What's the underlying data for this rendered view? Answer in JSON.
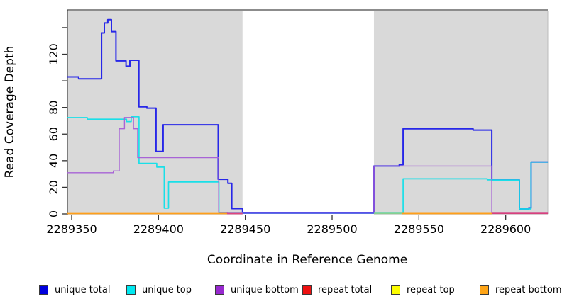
{
  "figure": {
    "background": "#ffffff",
    "plot_bg_shaded": "#d9d9d9",
    "xlabel": "Coordinate in Reference Genome",
    "ylabel": "Read Coverage Depth"
  },
  "chart_data": {
    "type": "line",
    "step": true,
    "title": "",
    "xlabel": "Coordinate in Reference Genome",
    "ylabel": "Read Coverage Depth",
    "xlim": [
      2289347.5,
      2289624.3
    ],
    "ylim": [
      0,
      152
    ],
    "grid": false,
    "legend_position": "bottom",
    "x_ticks": [
      {
        "v": 2289350,
        "label": "2289350"
      },
      {
        "v": 2289400,
        "label": "2289400"
      },
      {
        "v": 2289450,
        "label": "2289450"
      },
      {
        "v": 2289500,
        "label": "2289500"
      },
      {
        "v": 2289550,
        "label": "2289550"
      },
      {
        "v": 2289600,
        "label": "2289600"
      }
    ],
    "y_ticks": [
      {
        "v": 0,
        "label": "0"
      },
      {
        "v": 20,
        "label": "20"
      },
      {
        "v": 40,
        "label": "40"
      },
      {
        "v": 60,
        "label": "60"
      },
      {
        "v": 80,
        "label": "80"
      },
      {
        "v": 100,
        "label": ""
      },
      {
        "v": 120,
        "label": "120"
      },
      {
        "v": 140,
        "label": ""
      }
    ],
    "shaded_regions": [
      {
        "x1": 2289347.5,
        "x2": 2289448.4
      },
      {
        "x1": 2289524.1,
        "x2": 2289624.3
      }
    ],
    "series": [
      {
        "name": "unique total",
        "color": "#2727e8",
        "swatch": "#0000dd",
        "width": 2,
        "draw": true,
        "segments": [
          [
            [
              2289347.5,
              103
            ],
            [
              2289354.0,
              101.5
            ],
            [
              2289367.2,
              136
            ],
            [
              2289368.8,
              143.5
            ],
            [
              2289370.8,
              146
            ],
            [
              2289372.9,
              137
            ],
            [
              2289375.5,
              115
            ],
            [
              2289381.3,
              111
            ],
            [
              2289383.5,
              115.5
            ],
            [
              2289388.7,
              80.5
            ],
            [
              2289393.3,
              79.5
            ],
            [
              2289398.6,
              47
            ],
            [
              2289402.7,
              67
            ],
            [
              2289434.4,
              26
            ],
            [
              2289440.0,
              23
            ],
            [
              2289442.2,
              4
            ],
            [
              2289448.4,
              0.7
            ],
            [
              2289524.1,
              36
            ],
            [
              2289538.7,
              37
            ],
            [
              2289540.9,
              64
            ],
            [
              2289581.2,
              63
            ],
            [
              2289592.0,
              25.5
            ],
            [
              2289607.9,
              3.7
            ],
            [
              2289613.2,
              4.5
            ],
            [
              2289614.6,
              39
            ],
            [
              2289624.3,
              39
            ]
          ]
        ]
      },
      {
        "name": "unique top",
        "color": "#19dfe8",
        "swatch": "#00e8f0",
        "width": 1.7,
        "draw": true,
        "segments": [
          [
            [
              2289347.5,
              72.4
            ],
            [
              2289359.0,
              71.2
            ],
            [
              2289381.6,
              69.4
            ],
            [
              2289384.3,
              73
            ],
            [
              2289388.8,
              38
            ],
            [
              2289399.0,
              35.2
            ],
            [
              2289403.3,
              4.3
            ],
            [
              2289405.8,
              24
            ],
            [
              2289434.8,
              0.5
            ],
            [
              2289540.9,
              26.4
            ],
            [
              2289589.4,
              25.6
            ],
            [
              2289592.0,
              25.5
            ],
            [
              2289607.9,
              3.7
            ],
            [
              2289614.6,
              39
            ],
            [
              2289624.3,
              39
            ]
          ]
        ]
      },
      {
        "name": "unique bottom",
        "color": "#a863d6",
        "swatch": "#9728cf",
        "width": 1.4,
        "draw": true,
        "segments": [
          [
            [
              2289347.5,
              31
            ],
            [
              2289374.0,
              32.3
            ],
            [
              2289377.4,
              64
            ],
            [
              2289380.4,
              72.5
            ],
            [
              2289385.6,
              64
            ],
            [
              2289388.0,
              42.3
            ],
            [
              2289434.7,
              1.2
            ],
            [
              2289439.5,
              0.5
            ],
            [
              2289524.1,
              36
            ],
            [
              2289592.0,
              0.5
            ],
            [
              2289624.3,
              0.5
            ]
          ]
        ]
      },
      {
        "name": "repeat total",
        "color": "#d8407c",
        "swatch": "#ee1111",
        "width": 1.6,
        "draw": false,
        "segments": [
          [
            [
              2289439.5,
              0.25
            ],
            [
              2289448.4,
              0.25
            ]
          ],
          [
            [
              2289592.0,
              0.4
            ],
            [
              2289624.3,
              0.4
            ]
          ]
        ]
      },
      {
        "name": "repeat top",
        "color": "#fdfd00",
        "swatch": "#fdfd00",
        "width": 1.6,
        "draw": false,
        "segments": [
          [
            [
              2289524.1,
              0.4
            ],
            [
              2289540.3,
              0.4
            ]
          ]
        ]
      },
      {
        "name": "repeat bottom",
        "color": "#ff9f1a",
        "swatch": "#ffa517",
        "width": 1.6,
        "draw": false,
        "segments": [
          [
            [
              2289347.5,
              0.25
            ],
            [
              2289439.5,
              0.25
            ]
          ],
          [
            [
              2289540.3,
              0.3
            ],
            [
              2289592.0,
              0.3
            ]
          ]
        ]
      }
    ],
    "baseline_segments": [
      {
        "name": "repeat-bottom-left",
        "x1": 2289347.5,
        "x2": 2289439.5,
        "value": 0.25,
        "color": "#ff9f1a"
      },
      {
        "name": "repeat-total-left",
        "x1": 2289439.5,
        "x2": 2289448.4,
        "value": 0.25,
        "color": "#e0447f"
      },
      {
        "name": "unique-total-gap",
        "x1": 2289448.4,
        "x2": 2289524.1,
        "value": 0.7,
        "color": "#5a50e8"
      },
      {
        "name": "top-overlap-green",
        "x1": 2289524.1,
        "x2": 2289540.3,
        "value": 0.4,
        "color": "#86cf8e"
      },
      {
        "name": "repeat-bottom-right",
        "x1": 2289540.3,
        "x2": 2289592.0,
        "value": 0.3,
        "color": "#ff9f1a"
      },
      {
        "name": "repeat-total-right",
        "x1": 2289592.0,
        "x2": 2289624.3,
        "value": 0.4,
        "color": "#d8407c"
      }
    ],
    "legend": [
      {
        "label": "unique total",
        "color": "#0000dd"
      },
      {
        "label": "unique top",
        "color": "#00e8f0"
      },
      {
        "label": "unique bottom",
        "color": "#9728cf"
      },
      {
        "label": "repeat total",
        "color": "#ee1111"
      },
      {
        "label": "repeat top",
        "color": "#fdfd00"
      },
      {
        "label": "repeat bottom",
        "color": "#ffa517"
      }
    ]
  }
}
